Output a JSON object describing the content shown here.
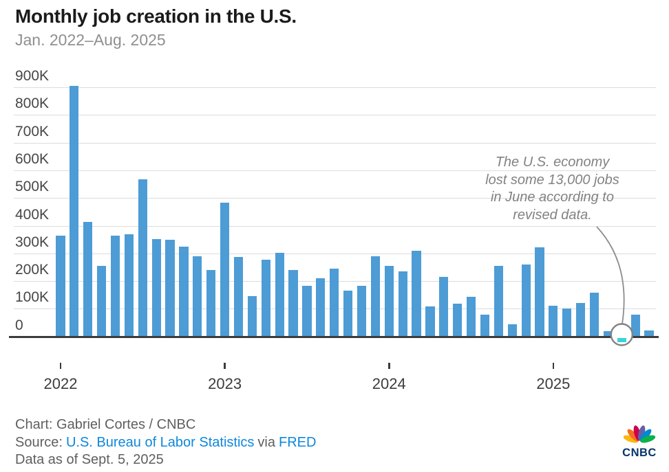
{
  "header": {
    "title": "Monthly job creation in the U.S.",
    "subtitle": "Jan. 2022–Aug. 2025"
  },
  "chart_data": {
    "type": "bar",
    "title": "Monthly job creation in the U.S.",
    "subtitle": "Jan. 2022–Aug. 2025",
    "unit": "jobs, thousands",
    "categories": [
      "Jan 2022",
      "Feb 2022",
      "Mar 2022",
      "Apr 2022",
      "May 2022",
      "Jun 2022",
      "Jul 2022",
      "Aug 2022",
      "Sep 2022",
      "Oct 2022",
      "Nov 2022",
      "Dec 2022",
      "Jan 2023",
      "Feb 2023",
      "Mar 2023",
      "Apr 2023",
      "May 2023",
      "Jun 2023",
      "Jul 2023",
      "Aug 2023",
      "Sep 2023",
      "Oct 2023",
      "Nov 2023",
      "Dec 2023",
      "Jan 2024",
      "Feb 2024",
      "Mar 2024",
      "Apr 2024",
      "May 2024",
      "Jun 2024",
      "Jul 2024",
      "Aug 2024",
      "Sep 2024",
      "Oct 2024",
      "Nov 2024",
      "Dec 2024",
      "Jan 2025",
      "Feb 2025",
      "Mar 2025",
      "Apr 2025",
      "May 2025",
      "Jun 2025",
      "Jul 2025",
      "Aug 2025"
    ],
    "values": [
      364,
      904,
      414,
      254,
      364,
      370,
      568,
      352,
      350,
      324,
      290,
      239,
      482,
      287,
      146,
      278,
      303,
      240,
      184,
      210,
      246,
      165,
      182,
      290,
      256,
      236,
      310,
      108,
      216,
      118,
      144,
      78,
      255,
      44,
      261,
      323,
      111,
      102,
      120,
      158,
      19,
      -13,
      79,
      22
    ],
    "values_unit": "K",
    "ylim": [
      0,
      900
    ],
    "ytick_labels": [
      "900K",
      "800K",
      "700K",
      "600K",
      "500K",
      "400K",
      "300K",
      "200K",
      "100K",
      "0"
    ],
    "year_labels": [
      "2022",
      "2023",
      "2024",
      "2025"
    ],
    "year_tick_indices": [
      0,
      12,
      24,
      36
    ],
    "grid": true,
    "legend": "none",
    "bar_color": "#4d9cd5",
    "highlight_color": "#36d5d8",
    "highlight_index": 41,
    "annotation": {
      "lines": [
        "The U.S. economy",
        "lost some 13,000 jobs",
        "in June according to",
        "revised data."
      ],
      "target_month": "Jun 2025",
      "target_value": -13
    }
  },
  "footer": {
    "credit": "Chart: Gabriel Cortes / CNBC",
    "source_label": "Source:",
    "source_link_bls": "U.S. Bureau of Labor Statistics",
    "via": "via",
    "source_link_fred": "FRED",
    "as_of": "Data as of Sept. 5, 2025"
  },
  "logo": {
    "label": "CNBC",
    "peacock_colors": [
      "#FCB711",
      "#F37021",
      "#CC004C",
      "#6460AA",
      "#0089D0",
      "#0DB14B"
    ]
  }
}
